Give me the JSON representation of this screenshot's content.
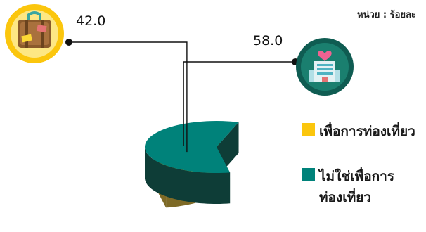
{
  "unit_label": "หน่วย : ร้อยละ",
  "colors": {
    "tourism_top": "#fbc60d",
    "tourism_side": "#7e6a26",
    "other_top": "#00827a",
    "other_side": "#0e3d37",
    "icon_ring_yellow": "#fbc60d",
    "icon_ring_teal": "#0f5c52"
  },
  "icons": {
    "tourism": "suitcase-icon",
    "other": "hospital-building-icon"
  },
  "chart_data": {
    "type": "pie",
    "style": "3d-exploded",
    "title": "",
    "unit": "ร้อยละ",
    "slices": [
      {
        "label": "เพื่อการท่องเที่ยว",
        "value": 42.0,
        "value_label": "42.0",
        "color": "#fbc60d"
      },
      {
        "label": "ไม่ใช่เพื่อการท่องเที่ยว",
        "value": 58.0,
        "value_label": "58.0",
        "color": "#00827a"
      }
    ],
    "legend": {
      "placement": "right",
      "items": [
        {
          "label": "เพื่อการท่องเที่ยว",
          "color": "#fbc60d"
        },
        {
          "label": "ไม่ใช่เพื่อการท่องเที่ยว",
          "color": "#00827a",
          "lines": [
            "ไม่ใช่เพื่อการ",
            "ท่องเที่ยว"
          ]
        }
      ]
    }
  }
}
